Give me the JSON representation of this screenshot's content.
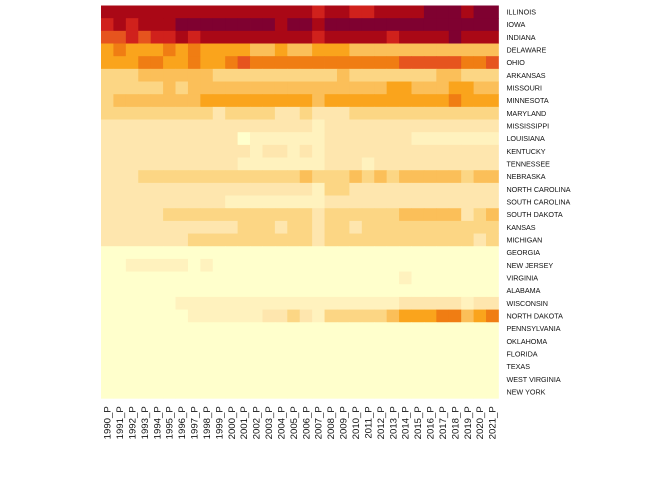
{
  "chart_data": {
    "type": "heatmap",
    "color_scale": [
      "#FFFFCC",
      "#FFF2BE",
      "#FEE6AE",
      "#FCD684",
      "#FBBF59",
      "#FAA41C",
      "#F07D13",
      "#E6541E",
      "#D0211C",
      "#AA0816",
      "#7F0130"
    ],
    "value_range": [
      0,
      10
    ],
    "rows": [
      "ILLINOIS",
      "IOWA",
      "INDIANA",
      "DELAWARE",
      "OHIO",
      "ARKANSAS",
      "MISSOURI",
      "MINNESOTA",
      "MARYLAND",
      "MISSISSIPPI",
      "LOUISIANA",
      "KENTUCKY",
      "TENNESSEE",
      "NEBRASKA",
      "NORTH CAROLINA",
      "SOUTH CAROLINA",
      "SOUTH DAKOTA",
      "KANSAS",
      "MICHIGAN",
      "GEORGIA",
      "NEW JERSEY",
      "VIRGINIA",
      "ALABAMA",
      "WISCONSIN",
      "NORTH DAKOTA",
      "PENNSYLVANIA",
      "OKLAHOMA",
      "FLORIDA",
      "TEXAS",
      "WEST VIRGINIA",
      "NEW YORK"
    ],
    "columns": [
      "1990_P",
      "1991_P",
      "1992_P",
      "1993_P",
      "1994_P",
      "1995_P",
      "1996_P",
      "1997_P",
      "1998_P",
      "1999_P",
      "2000_P",
      "2001_P",
      "2002_P",
      "2003_P",
      "2004_P",
      "2005_P",
      "2006_P",
      "2007_P",
      "2008_P",
      "2009_P",
      "2010_P",
      "2011_P",
      "2012_P",
      "2013_P",
      "2014_P",
      "2015_P",
      "2016_P",
      "2017_P",
      "2018_P",
      "2019_P",
      "2020_P",
      "2021_P"
    ],
    "values": [
      [
        9,
        9,
        9,
        9,
        9,
        9,
        9,
        9,
        9,
        9,
        9,
        9,
        9,
        9,
        9,
        9,
        9,
        8,
        9,
        9,
        8,
        8,
        9,
        9,
        9,
        9,
        10,
        10,
        10,
        9,
        10,
        10
      ],
      [
        8,
        9,
        8,
        9,
        9,
        9,
        10,
        10,
        10,
        10,
        10,
        10,
        10,
        10,
        9,
        10,
        10,
        9,
        10,
        10,
        10,
        10,
        10,
        10,
        10,
        10,
        10,
        10,
        10,
        10,
        10,
        10
      ],
      [
        7,
        7,
        8,
        7,
        8,
        8,
        9,
        8,
        9,
        9,
        9,
        9,
        9,
        9,
        9,
        9,
        9,
        8,
        9,
        9,
        9,
        9,
        9,
        8,
        9,
        9,
        9,
        9,
        10,
        9,
        9,
        9
      ],
      [
        5,
        6,
        5,
        5,
        5,
        6,
        5,
        6,
        5,
        5,
        5,
        5,
        4,
        4,
        5,
        4,
        4,
        5,
        5,
        5,
        4,
        4,
        4,
        4,
        4,
        4,
        4,
        4,
        4,
        4,
        4,
        4
      ],
      [
        5,
        5,
        5,
        6,
        6,
        5,
        5,
        6,
        5,
        5,
        6,
        7,
        6,
        6,
        6,
        6,
        6,
        6,
        6,
        6,
        6,
        6,
        6,
        6,
        7,
        7,
        7,
        7,
        7,
        6,
        6,
        7
      ],
      [
        3,
        3,
        3,
        4,
        4,
        4,
        4,
        4,
        4,
        3,
        3,
        3,
        3,
        3,
        3,
        3,
        3,
        3,
        3,
        4,
        3,
        3,
        3,
        3,
        3,
        3,
        3,
        4,
        4,
        3,
        3,
        3
      ],
      [
        3,
        3,
        3,
        3,
        3,
        4,
        3,
        4,
        4,
        4,
        4,
        4,
        4,
        4,
        4,
        4,
        4,
        4,
        4,
        4,
        4,
        4,
        4,
        5,
        5,
        4,
        4,
        4,
        5,
        5,
        4,
        4
      ],
      [
        3,
        4,
        4,
        4,
        4,
        4,
        4,
        4,
        5,
        5,
        5,
        5,
        5,
        5,
        5,
        5,
        5,
        4,
        5,
        5,
        5,
        5,
        5,
        5,
        5,
        5,
        5,
        5,
        6,
        5,
        5,
        5
      ],
      [
        3,
        3,
        3,
        3,
        3,
        3,
        3,
        3,
        3,
        2,
        3,
        3,
        3,
        3,
        2,
        2,
        3,
        2,
        2,
        2,
        3,
        3,
        3,
        3,
        3,
        3,
        3,
        3,
        3,
        3,
        3,
        3
      ],
      [
        2,
        2,
        2,
        2,
        2,
        2,
        2,
        2,
        2,
        2,
        2,
        2,
        2,
        2,
        2,
        2,
        2,
        1,
        2,
        2,
        2,
        2,
        2,
        2,
        2,
        2,
        2,
        2,
        2,
        2,
        2,
        2
      ],
      [
        2,
        2,
        2,
        2,
        2,
        2,
        2,
        2,
        2,
        2,
        2,
        0,
        1,
        1,
        1,
        1,
        1,
        1,
        2,
        2,
        2,
        2,
        2,
        2,
        2,
        1,
        1,
        1,
        1,
        1,
        1,
        1
      ],
      [
        2,
        2,
        2,
        2,
        2,
        2,
        2,
        2,
        2,
        2,
        2,
        2,
        1,
        2,
        2,
        1,
        2,
        1,
        2,
        2,
        2,
        2,
        2,
        2,
        2,
        2,
        2,
        2,
        2,
        2,
        2,
        2
      ],
      [
        2,
        2,
        2,
        2,
        2,
        2,
        2,
        2,
        2,
        2,
        2,
        1,
        1,
        1,
        1,
        1,
        1,
        1,
        2,
        2,
        2,
        1,
        2,
        2,
        2,
        2,
        2,
        2,
        2,
        2,
        2,
        2
      ],
      [
        2,
        2,
        2,
        3,
        3,
        3,
        3,
        3,
        3,
        3,
        3,
        3,
        3,
        3,
        3,
        3,
        4,
        3,
        3,
        3,
        4,
        3,
        4,
        3,
        4,
        4,
        4,
        4,
        4,
        3,
        4,
        4
      ],
      [
        2,
        2,
        2,
        2,
        2,
        2,
        2,
        2,
        2,
        2,
        2,
        2,
        2,
        2,
        2,
        2,
        2,
        1,
        3,
        3,
        2,
        2,
        2,
        2,
        2,
        2,
        2,
        2,
        2,
        2,
        2,
        2
      ],
      [
        2,
        2,
        2,
        2,
        2,
        2,
        2,
        2,
        2,
        2,
        1,
        1,
        1,
        1,
        1,
        1,
        1,
        1,
        2,
        2,
        2,
        2,
        2,
        2,
        2,
        2,
        2,
        2,
        2,
        2,
        2,
        2
      ],
      [
        2,
        2,
        2,
        2,
        2,
        3,
        3,
        3,
        3,
        3,
        3,
        3,
        3,
        3,
        3,
        3,
        3,
        2,
        3,
        3,
        3,
        3,
        3,
        3,
        4,
        4,
        4,
        4,
        4,
        2,
        3,
        4
      ],
      [
        2,
        2,
        2,
        2,
        2,
        2,
        2,
        2,
        2,
        2,
        2,
        3,
        3,
        3,
        2,
        3,
        3,
        2,
        3,
        3,
        2,
        3,
        3,
        3,
        3,
        3,
        3,
        3,
        3,
        3,
        3,
        3
      ],
      [
        2,
        2,
        2,
        2,
        2,
        2,
        2,
        3,
        3,
        3,
        3,
        3,
        3,
        3,
        3,
        3,
        3,
        2,
        3,
        3,
        3,
        3,
        3,
        3,
        3,
        3,
        3,
        3,
        3,
        3,
        2,
        3
      ],
      [
        0,
        0,
        0,
        0,
        0,
        0,
        0,
        0,
        0,
        0,
        0,
        0,
        0,
        0,
        0,
        0,
        0,
        0,
        0,
        0,
        0,
        0,
        0,
        0,
        0,
        0,
        0,
        0,
        0,
        0,
        0,
        0
      ],
      [
        0,
        0,
        1,
        1,
        1,
        1,
        1,
        0,
        1,
        0,
        0,
        0,
        0,
        0,
        0,
        0,
        0,
        0,
        0,
        0,
        0,
        0,
        0,
        0,
        0,
        0,
        0,
        0,
        0,
        0,
        0,
        0
      ],
      [
        0,
        0,
        0,
        0,
        0,
        0,
        0,
        0,
        0,
        0,
        0,
        0,
        0,
        0,
        0,
        0,
        0,
        0,
        0,
        0,
        0,
        0,
        0,
        0,
        1,
        0,
        0,
        0,
        0,
        0,
        0,
        0
      ],
      [
        0,
        0,
        0,
        0,
        0,
        0,
        0,
        0,
        0,
        0,
        0,
        0,
        0,
        0,
        0,
        0,
        0,
        0,
        0,
        0,
        0,
        0,
        0,
        0,
        0,
        0,
        0,
        0,
        0,
        0,
        0,
        0
      ],
      [
        0,
        0,
        0,
        0,
        0,
        0,
        1,
        1,
        1,
        1,
        1,
        1,
        1,
        1,
        1,
        1,
        1,
        1,
        1,
        1,
        1,
        1,
        1,
        1,
        2,
        2,
        2,
        2,
        2,
        1,
        2,
        2
      ],
      [
        0,
        0,
        0,
        0,
        0,
        0,
        0,
        1,
        1,
        1,
        1,
        1,
        1,
        2,
        2,
        3,
        2,
        1,
        3,
        3,
        3,
        3,
        3,
        4,
        5,
        5,
        5,
        6,
        6,
        4,
        5,
        6
      ],
      [
        0,
        0,
        0,
        0,
        0,
        0,
        0,
        0,
        0,
        0,
        0,
        0,
        0,
        0,
        0,
        0,
        0,
        0,
        0,
        0,
        0,
        0,
        0,
        0,
        0,
        0,
        0,
        0,
        0,
        0,
        0,
        0
      ],
      [
        0,
        0,
        0,
        0,
        0,
        0,
        0,
        0,
        0,
        0,
        0,
        0,
        0,
        0,
        0,
        0,
        0,
        0,
        0,
        0,
        0,
        0,
        0,
        0,
        0,
        0,
        0,
        0,
        0,
        0,
        0,
        0
      ],
      [
        0,
        0,
        0,
        0,
        0,
        0,
        0,
        0,
        0,
        0,
        0,
        0,
        0,
        0,
        0,
        0,
        0,
        0,
        0,
        0,
        0,
        0,
        0,
        0,
        0,
        0,
        0,
        0,
        0,
        0,
        0,
        0
      ],
      [
        0,
        0,
        0,
        0,
        0,
        0,
        0,
        0,
        0,
        0,
        0,
        0,
        0,
        0,
        0,
        0,
        0,
        0,
        0,
        0,
        0,
        0,
        0,
        0,
        0,
        0,
        0,
        0,
        0,
        0,
        0,
        0
      ],
      [
        0,
        0,
        0,
        0,
        0,
        0,
        0,
        0,
        0,
        0,
        0,
        0,
        0,
        0,
        0,
        0,
        0,
        0,
        0,
        0,
        0,
        0,
        0,
        0,
        0,
        0,
        0,
        0,
        0,
        0,
        0,
        0
      ],
      [
        0,
        0,
        0,
        0,
        0,
        0,
        0,
        0,
        0,
        0,
        0,
        0,
        0,
        0,
        0,
        0,
        0,
        0,
        0,
        0,
        0,
        0,
        0,
        0,
        0,
        0,
        0,
        0,
        0,
        0,
        0,
        0
      ]
    ],
    "legend": "none",
    "grid": false
  }
}
